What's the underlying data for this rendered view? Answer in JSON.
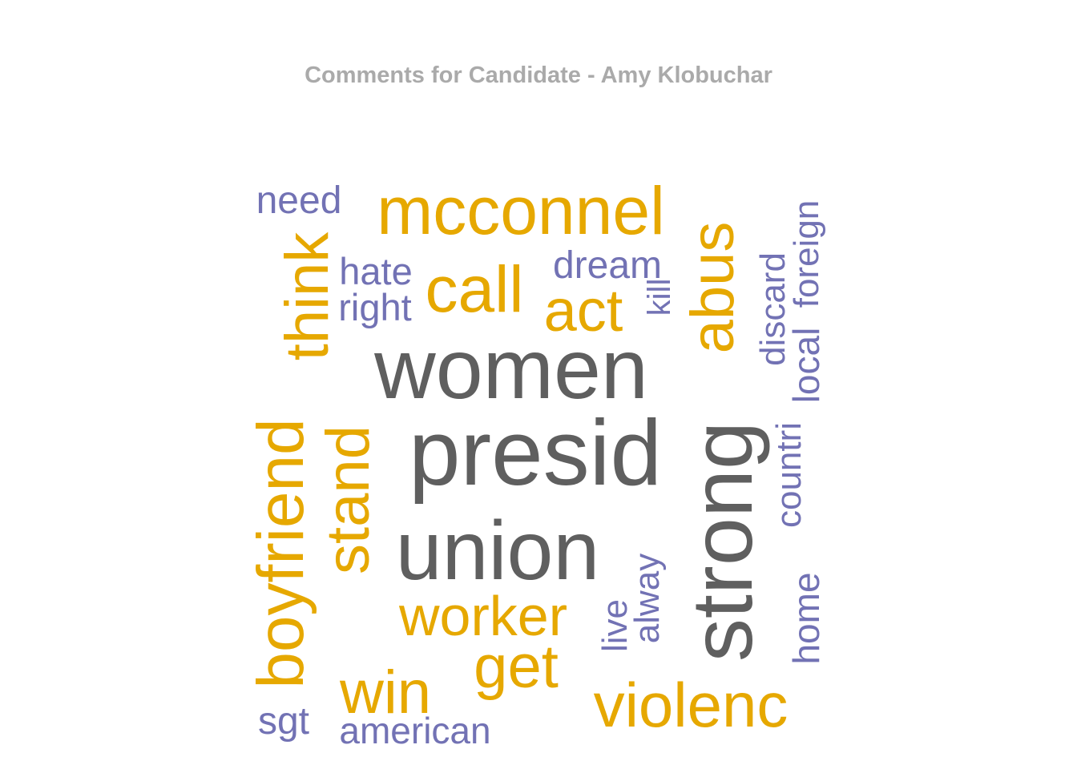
{
  "title": "Comments for Candidate - Amy Klobuchar",
  "colors": {
    "title": "#aaaaaa",
    "tier_high": "#5f5f5f",
    "tier_mid": "#e6a800",
    "tier_low": "#7272b4",
    "background": "#ffffff"
  },
  "chart_data": {
    "type": "wordcloud",
    "title": "Comments for Candidate - Amy Klobuchar",
    "orientation": "mixed horizontal and vertical words",
    "words": [
      {
        "text": "women",
        "tier": "high",
        "weight": 5,
        "vertical": false
      },
      {
        "text": "presid",
        "tier": "high",
        "weight": 5,
        "vertical": false
      },
      {
        "text": "union",
        "tier": "high",
        "weight": 5,
        "vertical": false
      },
      {
        "text": "strong",
        "tier": "high",
        "weight": 5,
        "vertical": true
      },
      {
        "text": "mcconnel",
        "tier": "mid",
        "weight": 3,
        "vertical": false
      },
      {
        "text": "call",
        "tier": "mid",
        "weight": 3,
        "vertical": false
      },
      {
        "text": "act",
        "tier": "mid",
        "weight": 3,
        "vertical": false
      },
      {
        "text": "think",
        "tier": "mid",
        "weight": 3,
        "vertical": true
      },
      {
        "text": "abus",
        "tier": "mid",
        "weight": 3,
        "vertical": true
      },
      {
        "text": "boyfriend",
        "tier": "mid",
        "weight": 3,
        "vertical": true
      },
      {
        "text": "stand",
        "tier": "mid",
        "weight": 3,
        "vertical": true
      },
      {
        "text": "worker",
        "tier": "mid",
        "weight": 3,
        "vertical": false
      },
      {
        "text": "get",
        "tier": "mid",
        "weight": 3,
        "vertical": false
      },
      {
        "text": "win",
        "tier": "mid",
        "weight": 3,
        "vertical": false
      },
      {
        "text": "violenc",
        "tier": "mid",
        "weight": 3,
        "vertical": false
      },
      {
        "text": "need",
        "tier": "low",
        "weight": 1,
        "vertical": false
      },
      {
        "text": "hate",
        "tier": "low",
        "weight": 1,
        "vertical": false
      },
      {
        "text": "right",
        "tier": "low",
        "weight": 1,
        "vertical": false
      },
      {
        "text": "dream",
        "tier": "low",
        "weight": 1,
        "vertical": false
      },
      {
        "text": "kill",
        "tier": "low",
        "weight": 1,
        "vertical": true
      },
      {
        "text": "discard",
        "tier": "low",
        "weight": 1,
        "vertical": true
      },
      {
        "text": "foreign",
        "tier": "low",
        "weight": 1,
        "vertical": true
      },
      {
        "text": "local",
        "tier": "low",
        "weight": 1,
        "vertical": true
      },
      {
        "text": "countri",
        "tier": "low",
        "weight": 1,
        "vertical": true
      },
      {
        "text": "alway",
        "tier": "low",
        "weight": 1,
        "vertical": true
      },
      {
        "text": "live",
        "tier": "low",
        "weight": 1,
        "vertical": true
      },
      {
        "text": "home",
        "tier": "low",
        "weight": 1,
        "vertical": true
      },
      {
        "text": "sgt",
        "tier": "low",
        "weight": 1,
        "vertical": false
      },
      {
        "text": "american",
        "tier": "low",
        "weight": 1,
        "vertical": false
      }
    ]
  }
}
